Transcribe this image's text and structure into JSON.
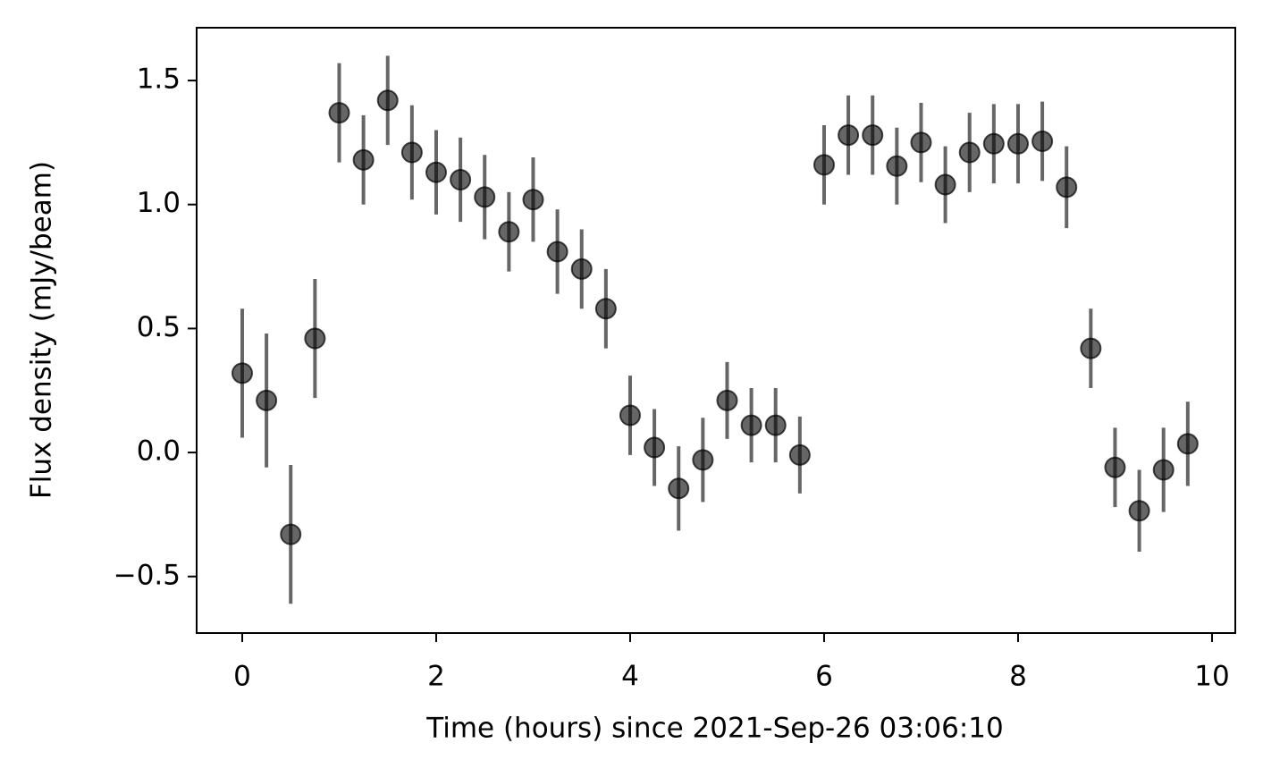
{
  "chart_data": {
    "type": "errorbar",
    "x_label": "Time (hours) since 2021-Sep-26 03:06:10",
    "y_label": "Flux density (mJy/beam)",
    "color": "#000000",
    "error_color": "#555555",
    "x": [
      0,
      0.25,
      0.5,
      0.75,
      1,
      1.25,
      1.5,
      1.75,
      2,
      2.25,
      2.5,
      2.75,
      3,
      3.25,
      3.5,
      3.75,
      4,
      4.25,
      4.5,
      4.75,
      5,
      5.25,
      5.5,
      5.75,
      6,
      6.25,
      6.5,
      6.75,
      7,
      7.25,
      7.5,
      7.75,
      8,
      8.25,
      8.5,
      8.75,
      9,
      9.25,
      9.5,
      9.75
    ],
    "values": [
      0.32,
      0.21,
      -0.33,
      0.46,
      1.37,
      1.18,
      1.42,
      1.21,
      1.13,
      1.1,
      1.03,
      0.89,
      1.02,
      0.81,
      0.74,
      0.58,
      0.15,
      0.02,
      -0.145,
      -0.03,
      0.21,
      0.11,
      0.11,
      -0.01,
      1.16,
      1.28,
      1.28,
      1.155,
      1.25,
      1.08,
      1.21,
      1.245,
      1.245,
      1.255,
      1.07,
      0.42,
      -0.06,
      -0.235,
      -0.07,
      0.035
    ],
    "errors": [
      0.26,
      0.27,
      0.28,
      0.24,
      0.2,
      0.18,
      0.18,
      0.19,
      0.17,
      0.17,
      0.17,
      0.16,
      0.17,
      0.17,
      0.16,
      0.16,
      0.16,
      0.155,
      0.17,
      0.17,
      0.155,
      0.15,
      0.15,
      0.155,
      0.16,
      0.16,
      0.16,
      0.155,
      0.16,
      0.155,
      0.16,
      0.16,
      0.16,
      0.16,
      0.165,
      0.16,
      0.16,
      0.165,
      0.17,
      0.17
    ],
    "xlim": [
      -0.47,
      10.24
    ],
    "ylim": [
      -0.728,
      1.713
    ],
    "xticks": [
      0,
      2,
      4,
      6,
      8,
      10
    ],
    "yticks": [
      {
        "value": -0.5,
        "label": "−0.5"
      },
      {
        "value": 0,
        "label": "0.0"
      },
      {
        "value": 0.5,
        "label": "0.5"
      },
      {
        "value": 1,
        "label": "1.0"
      },
      {
        "value": 1.5,
        "label": "1.5"
      }
    ]
  }
}
